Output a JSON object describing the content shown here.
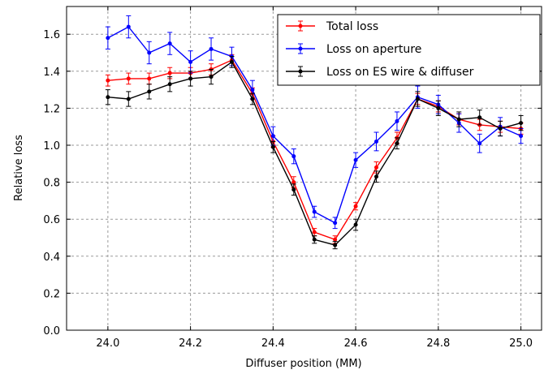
{
  "chart_data": {
    "type": "line",
    "title": "",
    "xlabel": "Diffuser position (MM)",
    "ylabel": "Relative loss",
    "xlim": [
      23.9,
      25.05
    ],
    "ylim": [
      0.0,
      1.75
    ],
    "xticks": [
      "24.0",
      "24.2",
      "24.4",
      "24.6",
      "24.8",
      "25.0"
    ],
    "xtick_values": [
      24.0,
      24.2,
      24.4,
      24.6,
      24.8,
      25.0
    ],
    "yticks": [
      "0.0",
      "0.2",
      "0.4",
      "0.6",
      "0.8",
      "1.0",
      "1.2",
      "1.4",
      "1.6"
    ],
    "ytick_values": [
      0.0,
      0.2,
      0.4,
      0.6,
      0.8,
      1.0,
      1.2,
      1.4,
      1.6
    ],
    "grid": true,
    "legend_position": "top-right",
    "x": [
      24.0,
      24.05,
      24.1,
      24.15,
      24.2,
      24.25,
      24.3,
      24.35,
      24.4,
      24.45,
      24.5,
      24.55,
      24.6,
      24.65,
      24.7,
      24.75,
      24.8,
      24.85,
      24.9,
      24.95,
      25.0
    ],
    "series": [
      {
        "name": "Total loss",
        "color": "#ff0000",
        "values": [
          1.35,
          1.36,
          1.36,
          1.39,
          1.39,
          1.41,
          1.46,
          1.28,
          1.02,
          0.8,
          0.53,
          0.49,
          0.67,
          0.88,
          1.04,
          1.25,
          1.21,
          1.14,
          1.11,
          1.1,
          1.09
        ],
        "errors": [
          0.03,
          0.03,
          0.03,
          0.03,
          0.03,
          0.03,
          0.03,
          0.03,
          0.03,
          0.03,
          0.02,
          0.02,
          0.02,
          0.03,
          0.03,
          0.03,
          0.03,
          0.03,
          0.03,
          0.03,
          0.03
        ]
      },
      {
        "name": "Loss on aperture",
        "color": "#0000ff",
        "values": [
          1.58,
          1.64,
          1.5,
          1.55,
          1.45,
          1.52,
          1.48,
          1.3,
          1.05,
          0.94,
          0.64,
          0.58,
          0.92,
          1.02,
          1.13,
          1.26,
          1.22,
          1.12,
          1.01,
          1.1,
          1.05
        ],
        "errors": [
          0.06,
          0.06,
          0.06,
          0.06,
          0.06,
          0.06,
          0.05,
          0.05,
          0.05,
          0.04,
          0.03,
          0.03,
          0.04,
          0.05,
          0.05,
          0.06,
          0.05,
          0.05,
          0.05,
          0.05,
          0.04
        ]
      },
      {
        "name": "Loss on ES wire & diffuser",
        "color": "#000000",
        "values": [
          1.26,
          1.25,
          1.29,
          1.33,
          1.36,
          1.37,
          1.45,
          1.25,
          0.99,
          0.76,
          0.49,
          0.46,
          0.57,
          0.83,
          1.01,
          1.25,
          1.2,
          1.14,
          1.15,
          1.09,
          1.12
        ],
        "errors": [
          0.04,
          0.04,
          0.04,
          0.04,
          0.04,
          0.04,
          0.03,
          0.03,
          0.03,
          0.03,
          0.02,
          0.02,
          0.03,
          0.03,
          0.03,
          0.04,
          0.04,
          0.04,
          0.04,
          0.04,
          0.04
        ]
      }
    ]
  }
}
